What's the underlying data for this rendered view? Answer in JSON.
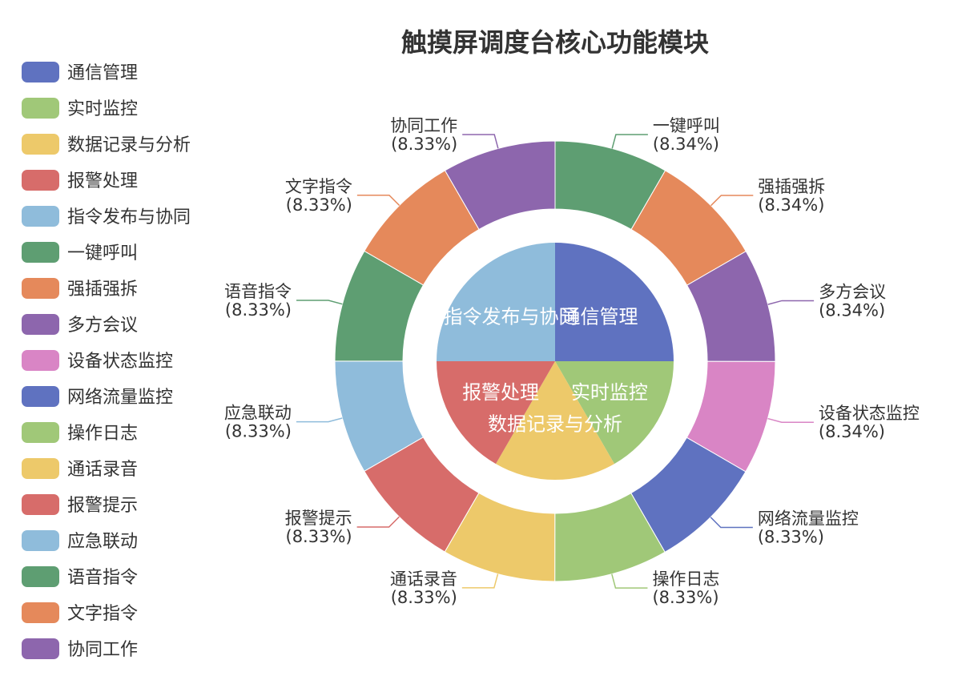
{
  "chart_data": {
    "type": "pie",
    "title": "触摸屏调度台核心功能模块",
    "legend_position": "left",
    "inner_ring": {
      "style": "pie",
      "slices": [
        {
          "label": "通信管理",
          "value": 25,
          "color": "#5f72c0"
        },
        {
          "label": "实时监控",
          "value": 16.67,
          "color": "#a0c878"
        },
        {
          "label": "数据记录与分析",
          "value": 16.67,
          "color": "#edc96a"
        },
        {
          "label": "报警处理",
          "value": 16.67,
          "color": "#d76c6a"
        },
        {
          "label": "指令发布与协同",
          "value": 25,
          "color": "#8fbcdb"
        }
      ]
    },
    "outer_ring": {
      "style": "donut",
      "slices": [
        {
          "label": "一键呼叫",
          "value": 8.34,
          "percent_label": "(8.34%)",
          "color": "#5e9e72"
        },
        {
          "label": "强插强拆",
          "value": 8.34,
          "percent_label": "(8.34%)",
          "color": "#e5895b"
        },
        {
          "label": "多方会议",
          "value": 8.34,
          "percent_label": "(8.34%)",
          "color": "#8d66ad"
        },
        {
          "label": "设备状态监控",
          "value": 8.34,
          "percent_label": "(8.34%)",
          "color": "#d985c5"
        },
        {
          "label": "网络流量监控",
          "value": 8.33,
          "percent_label": "(8.33%)",
          "color": "#5f72c0"
        },
        {
          "label": "操作日志",
          "value": 8.33,
          "percent_label": "(8.33%)",
          "color": "#a0c878"
        },
        {
          "label": "通话录音",
          "value": 8.33,
          "percent_label": "(8.33%)",
          "color": "#edc96a"
        },
        {
          "label": "报警提示",
          "value": 8.33,
          "percent_label": "(8.33%)",
          "color": "#d76c6a"
        },
        {
          "label": "应急联动",
          "value": 8.33,
          "percent_label": "(8.33%)",
          "color": "#8fbcdb"
        },
        {
          "label": "语音指令",
          "value": 8.33,
          "percent_label": "(8.33%)",
          "color": "#5e9e72"
        },
        {
          "label": "文字指令",
          "value": 8.33,
          "percent_label": "(8.33%)",
          "color": "#e5895b"
        },
        {
          "label": "协同工作",
          "value": 8.33,
          "percent_label": "(8.33%)",
          "color": "#8d66ad"
        }
      ]
    },
    "legend": [
      {
        "label": "通信管理",
        "color": "#5f72c0"
      },
      {
        "label": "实时监控",
        "color": "#a0c878"
      },
      {
        "label": "数据记录与分析",
        "color": "#edc96a"
      },
      {
        "label": "报警处理",
        "color": "#d76c6a"
      },
      {
        "label": "指令发布与协同",
        "color": "#8fbcdb"
      },
      {
        "label": "一键呼叫",
        "color": "#5e9e72"
      },
      {
        "label": "强插强拆",
        "color": "#e5895b"
      },
      {
        "label": "多方会议",
        "color": "#8d66ad"
      },
      {
        "label": "设备状态监控",
        "color": "#d985c5"
      },
      {
        "label": "网络流量监控",
        "color": "#5f72c0"
      },
      {
        "label": "操作日志",
        "color": "#a0c878"
      },
      {
        "label": "通话录音",
        "color": "#edc96a"
      },
      {
        "label": "报警提示",
        "color": "#d76c6a"
      },
      {
        "label": "应急联动",
        "color": "#8fbcdb"
      },
      {
        "label": "语音指令",
        "color": "#5e9e72"
      },
      {
        "label": "文字指令",
        "color": "#e5895b"
      },
      {
        "label": "协同工作",
        "color": "#8d66ad"
      }
    ]
  }
}
